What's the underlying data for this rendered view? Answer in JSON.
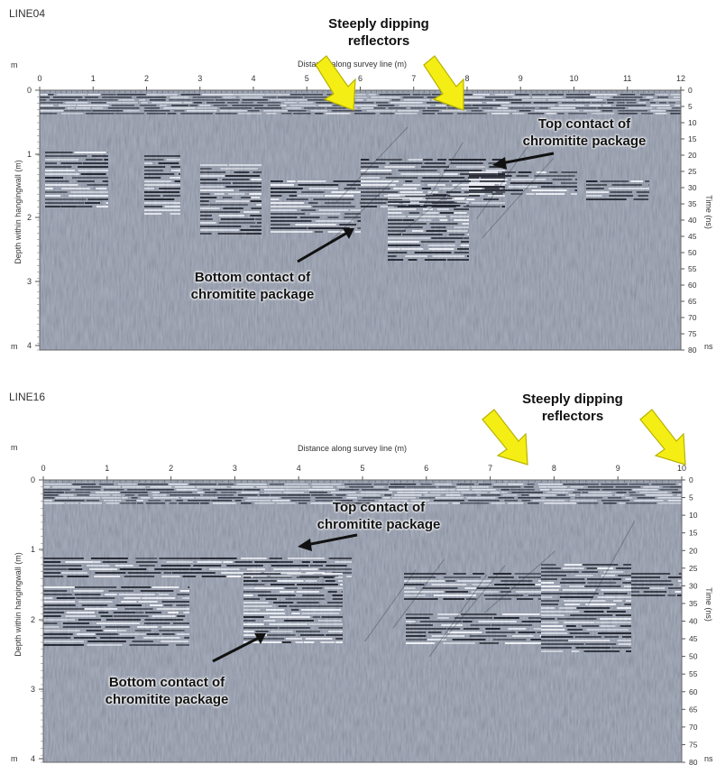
{
  "colors": {
    "radar_base": "#8e97ab",
    "arrow_yellow": "#f5ee14",
    "arrow_outline": "#b8b200",
    "annotation_black": "#111111"
  },
  "panels": [
    {
      "id": "top",
      "title": "LINE04",
      "x_axis_label": "Distance along survey line (m)",
      "x_ticks": [
        "0",
        "1",
        "2",
        "3",
        "4",
        "5",
        "6",
        "7",
        "8",
        "9",
        "10",
        "11",
        "12"
      ],
      "depth_label": "Depth within hangingwall (m)",
      "depth_ticks": [
        "0",
        "1",
        "2",
        "3",
        "4"
      ],
      "depth_unit_top": "m",
      "depth_unit_bottom": "m",
      "time_label": "Time (ns)",
      "time_ticks": [
        "0",
        "5",
        "10",
        "15",
        "20",
        "25",
        "30",
        "35",
        "40",
        "45",
        "50",
        "55",
        "60",
        "65",
        "70",
        "75",
        "80"
      ],
      "time_unit": "ns",
      "callouts": {
        "steep_line1": "Steeply dipping",
        "steep_line2": "reflectors",
        "top_line1": "Top contact of",
        "top_line2": "chromitite package",
        "bottom_line1": "Bottom contact of",
        "bottom_line2": "chromitite package"
      }
    },
    {
      "id": "bottom",
      "title": "LINE16",
      "x_axis_label": "Distance along survey line (m)",
      "x_ticks": [
        "0",
        "1",
        "2",
        "3",
        "4",
        "5",
        "6",
        "7",
        "8",
        "9",
        "10"
      ],
      "depth_label": "Depth within hangingwall (m)",
      "depth_ticks": [
        "0",
        "1",
        "2",
        "3",
        "4"
      ],
      "depth_unit_top": "m",
      "depth_unit_bottom": "m",
      "time_label": "Time (ns)",
      "time_ticks": [
        "0",
        "5",
        "10",
        "15",
        "20",
        "25",
        "30",
        "35",
        "40",
        "45",
        "50",
        "55",
        "60",
        "65",
        "70",
        "75",
        "80"
      ],
      "time_unit": "ns",
      "callouts": {
        "steep_line1": "Steeply dipping",
        "steep_line2": "reflectors",
        "top_line1": "Top contact of",
        "top_line2": "chromitite package",
        "bottom_line1": "Bottom contact of",
        "bottom_line2": "chromitite package"
      }
    }
  ]
}
